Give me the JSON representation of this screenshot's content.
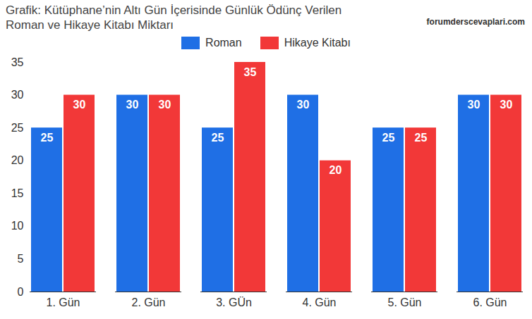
{
  "chart_data": {
    "type": "bar",
    "title": "Grafik: Kütüphane’nin Altı Gün İçerisinde Günlük Ödünç Verilen Roman ve Hikaye Kitabı Miktarı",
    "source": "forumderscevaplari.com",
    "categories": [
      "1. Gün",
      "2. Gün",
      "3. GÜn",
      "4. Gün",
      "5. Gün",
      "6. Gün"
    ],
    "series": [
      {
        "name": "Roman",
        "color": "#1f6fe5",
        "values": [
          25,
          30,
          25,
          30,
          25,
          30
        ]
      },
      {
        "name": "Hikaye Kitabı",
        "color": "#f23838",
        "values": [
          30,
          30,
          35,
          20,
          25,
          30
        ]
      }
    ],
    "ylim": [
      0,
      35
    ],
    "yticks": [
      0,
      5,
      10,
      15,
      20,
      25,
      30,
      35
    ],
    "grid": false,
    "legend": "top",
    "data_labels": true
  }
}
